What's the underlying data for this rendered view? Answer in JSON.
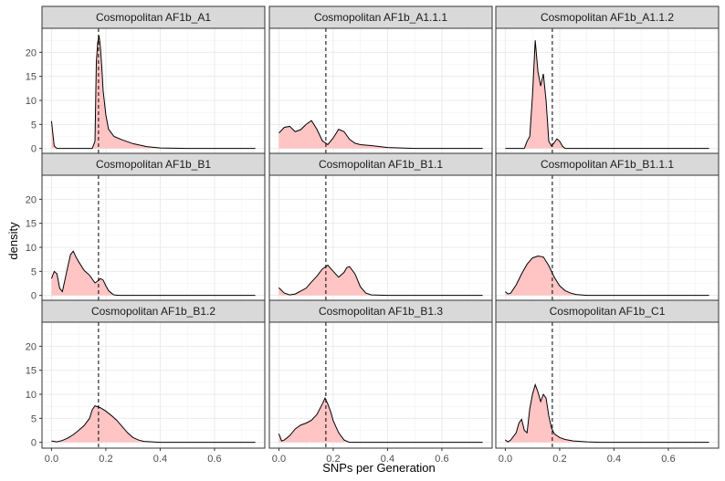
{
  "chart_data": {
    "type": "area",
    "xlabel": "SNPs per Generation",
    "ylabel": "density",
    "xlim": [
      -0.035,
      0.785
    ],
    "ylim": [
      -1.2,
      25
    ],
    "xticks": [
      0.0,
      0.2,
      0.4,
      0.6
    ],
    "xtick_labels": [
      "0.0",
      "0.2",
      "0.4",
      "0.6"
    ],
    "yticks": [
      0,
      5,
      10,
      15,
      20
    ],
    "ytick_labels": [
      "0",
      "5",
      "10",
      "15",
      "20"
    ],
    "reference_line_x": 0.173,
    "grid": true,
    "legend": "none",
    "colors": {
      "fill": "#ffc4c4",
      "line": "#000000",
      "strip": "#d9d9d9",
      "grid": "#ebebeb",
      "panel_border": "#333333"
    },
    "panels": [
      {
        "name": "Cosmopolitan AF1b_A1",
        "x": [
          0.0,
          0.01,
          0.02,
          0.15,
          0.16,
          0.165,
          0.17,
          0.175,
          0.18,
          0.185,
          0.19,
          0.2,
          0.21,
          0.23,
          0.26,
          0.3,
          0.35,
          0.4,
          0.5,
          0.6,
          0.75
        ],
        "y": [
          5.7,
          0.5,
          0.0,
          0.0,
          1.5,
          18,
          22,
          23.5,
          21,
          17,
          12,
          7,
          4,
          2.5,
          1.8,
          1.0,
          0.4,
          0.1,
          0.0,
          0.0,
          0.0
        ]
      },
      {
        "name": "Cosmopolitan AF1b_A1.1.1",
        "x": [
          0.0,
          0.02,
          0.04,
          0.06,
          0.08,
          0.1,
          0.12,
          0.14,
          0.16,
          0.18,
          0.2,
          0.22,
          0.24,
          0.26,
          0.28,
          0.3,
          0.34,
          0.4,
          0.5,
          0.6,
          0.75
        ],
        "y": [
          3.2,
          4.4,
          4.6,
          3.5,
          3.9,
          5.0,
          5.8,
          4.0,
          1.6,
          0.8,
          2.2,
          4.0,
          3.5,
          1.9,
          1.1,
          0.8,
          0.6,
          0.2,
          0.0,
          0.0,
          0.0
        ]
      },
      {
        "name": "Cosmopolitan AF1b_A1.1.2",
        "x": [
          0.0,
          0.07,
          0.08,
          0.09,
          0.1,
          0.11,
          0.12,
          0.13,
          0.14,
          0.15,
          0.16,
          0.17,
          0.18,
          0.19,
          0.2,
          0.21,
          0.22,
          0.25,
          0.4,
          0.75
        ],
        "y": [
          0.0,
          0.0,
          1.5,
          2.5,
          11,
          22.5,
          16,
          13,
          15.5,
          10,
          1.5,
          0.5,
          1.2,
          2.0,
          1.5,
          0.5,
          0.0,
          0.0,
          0.0,
          0.0
        ]
      },
      {
        "name": "Cosmopolitan AF1b_B1",
        "x": [
          0.0,
          0.01,
          0.02,
          0.03,
          0.04,
          0.06,
          0.07,
          0.08,
          0.09,
          0.1,
          0.12,
          0.14,
          0.16,
          0.17,
          0.18,
          0.19,
          0.2,
          0.21,
          0.22,
          0.23,
          0.25,
          0.4,
          0.75
        ],
        "y": [
          3.5,
          5.0,
          4.5,
          1.5,
          0.8,
          6.0,
          8.5,
          9.2,
          8.0,
          7.0,
          5.2,
          4.2,
          2.6,
          3.0,
          3.5,
          3.2,
          2.0,
          1.0,
          0.5,
          0.1,
          0.0,
          0.0,
          0.0
        ]
      },
      {
        "name": "Cosmopolitan AF1b_B1.1",
        "x": [
          0.0,
          0.02,
          0.04,
          0.06,
          0.1,
          0.12,
          0.14,
          0.16,
          0.18,
          0.2,
          0.22,
          0.24,
          0.25,
          0.26,
          0.28,
          0.3,
          0.32,
          0.34,
          0.4,
          0.5,
          0.75
        ],
        "y": [
          1.6,
          0.5,
          0.1,
          0.3,
          1.5,
          2.8,
          4.0,
          5.5,
          6.3,
          5.0,
          3.8,
          4.8,
          5.8,
          6.0,
          4.5,
          1.8,
          0.5,
          0.1,
          0.0,
          0.0,
          0.0
        ]
      },
      {
        "name": "Cosmopolitan AF1b_B1.1.1",
        "x": [
          0.0,
          0.01,
          0.02,
          0.04,
          0.06,
          0.08,
          0.1,
          0.12,
          0.14,
          0.16,
          0.18,
          0.2,
          0.22,
          0.24,
          0.26,
          0.3,
          0.35,
          0.4,
          0.5,
          0.75
        ],
        "y": [
          0.8,
          0.3,
          0.5,
          2.2,
          4.5,
          6.5,
          7.8,
          8.2,
          8.0,
          6.2,
          3.8,
          2.0,
          1.0,
          0.5,
          0.2,
          0.0,
          0.0,
          0.0,
          0.0,
          0.0
        ]
      },
      {
        "name": "Cosmopolitan AF1b_B1.2",
        "x": [
          0.0,
          0.02,
          0.04,
          0.06,
          0.08,
          0.1,
          0.12,
          0.14,
          0.15,
          0.16,
          0.18,
          0.2,
          0.22,
          0.24,
          0.26,
          0.28,
          0.3,
          0.32,
          0.34,
          0.4,
          0.5,
          0.75
        ],
        "y": [
          0.3,
          0.1,
          0.4,
          0.9,
          1.6,
          2.5,
          3.5,
          5.0,
          6.8,
          7.6,
          7.2,
          6.5,
          5.6,
          4.6,
          3.3,
          2.0,
          1.0,
          0.5,
          0.2,
          0.0,
          0.0,
          0.0
        ]
      },
      {
        "name": "Cosmopolitan AF1b_B1.3",
        "x": [
          0.0,
          0.01,
          0.02,
          0.04,
          0.06,
          0.08,
          0.1,
          0.12,
          0.14,
          0.16,
          0.17,
          0.18,
          0.19,
          0.2,
          0.22,
          0.24,
          0.26,
          0.3,
          0.35,
          0.4,
          0.5,
          0.75
        ],
        "y": [
          1.8,
          0.3,
          0.5,
          1.4,
          2.8,
          3.6,
          4.0,
          4.6,
          5.8,
          8.0,
          9.2,
          8.0,
          6.5,
          4.5,
          2.0,
          0.5,
          0.0,
          0.0,
          0.0,
          0.0,
          0.0,
          0.0
        ]
      },
      {
        "name": "Cosmopolitan AF1b_C1",
        "x": [
          0.0,
          0.01,
          0.02,
          0.04,
          0.05,
          0.06,
          0.07,
          0.08,
          0.09,
          0.1,
          0.11,
          0.12,
          0.13,
          0.14,
          0.15,
          0.16,
          0.17,
          0.18,
          0.2,
          0.22,
          0.25,
          0.3,
          0.35,
          0.4,
          0.5,
          0.75
        ],
        "y": [
          0.5,
          0.1,
          0.5,
          2.0,
          4.0,
          4.8,
          2.5,
          2.0,
          7.0,
          10.0,
          12.0,
          10.5,
          8.5,
          10.0,
          9.2,
          5.5,
          3.0,
          1.8,
          1.0,
          0.6,
          0.3,
          0.1,
          0.0,
          0.0,
          0.0,
          0.0
        ]
      }
    ]
  }
}
